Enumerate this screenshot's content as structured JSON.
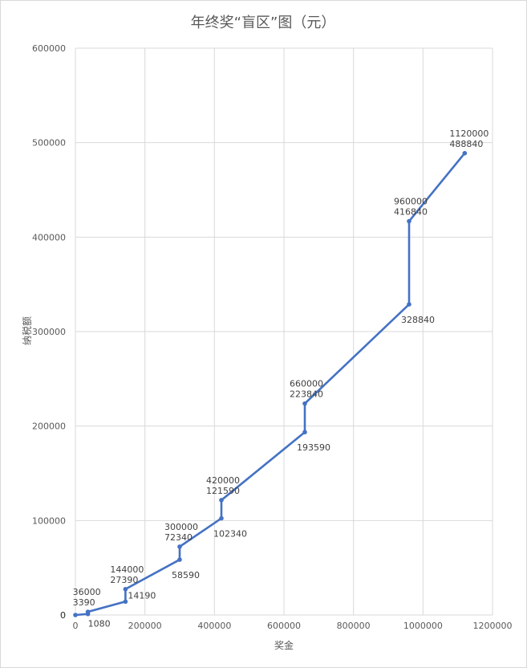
{
  "chart_data": {
    "type": "line",
    "title": "年终奖“盲区”图（元）",
    "xlabel": "奖金",
    "ylabel": "纳税额",
    "xlim": [
      0,
      1200000
    ],
    "ylim": [
      0,
      600000
    ],
    "x_ticks": [
      "0",
      "200000",
      "400000",
      "600000",
      "800000",
      "1000000",
      "1200000"
    ],
    "y_ticks": [
      "0",
      "100000",
      "200000",
      "300000",
      "400000",
      "500000",
      "600000"
    ],
    "grid": true,
    "series": [
      {
        "color": "#4472c4",
        "points": [
          {
            "x": 0,
            "y": 0
          },
          {
            "x": 36000,
            "y": 1080
          },
          {
            "x": 36000,
            "y": 3390
          },
          {
            "x": 144000,
            "y": 14190
          },
          {
            "x": 144000,
            "y": 27390
          },
          {
            "x": 300000,
            "y": 58590
          },
          {
            "x": 300000,
            "y": 72340
          },
          {
            "x": 420000,
            "y": 102340
          },
          {
            "x": 420000,
            "y": 121590
          },
          {
            "x": 660000,
            "y": 193590
          },
          {
            "x": 660000,
            "y": 223840
          },
          {
            "x": 960000,
            "y": 328840
          },
          {
            "x": 960000,
            "y": 416840
          },
          {
            "x": 1120000,
            "y": 488840
          }
        ]
      }
    ],
    "data_labels": [
      {
        "px": 0,
        "lines": [
          "0"
        ],
        "pos": "left"
      },
      {
        "px": 1,
        "lines": [
          "1080"
        ],
        "pos": "below-right"
      },
      {
        "px": 2,
        "lines": [
          "36000",
          "3390"
        ],
        "pos": "above"
      },
      {
        "px": 3,
        "lines": [
          "14190"
        ],
        "pos": "right"
      },
      {
        "px": 4,
        "lines": [
          "144000",
          "27390"
        ],
        "pos": "above"
      },
      {
        "px": 5,
        "lines": [
          "58590"
        ],
        "pos": "below"
      },
      {
        "px": 6,
        "lines": [
          "300000",
          "72340"
        ],
        "pos": "above"
      },
      {
        "px": 7,
        "lines": [
          "102340"
        ],
        "pos": "below"
      },
      {
        "px": 8,
        "lines": [
          "420000",
          "121590"
        ],
        "pos": "above"
      },
      {
        "px": 9,
        "lines": [
          "193590"
        ],
        "pos": "below"
      },
      {
        "px": 10,
        "lines": [
          "660000",
          "223840"
        ],
        "pos": "above"
      },
      {
        "px": 11,
        "lines": [
          "328840"
        ],
        "pos": "below"
      },
      {
        "px": 12,
        "lines": [
          "960000",
          "416840"
        ],
        "pos": "above"
      },
      {
        "px": 13,
        "lines": [
          "1120000",
          "488840"
        ],
        "pos": "above"
      }
    ]
  }
}
